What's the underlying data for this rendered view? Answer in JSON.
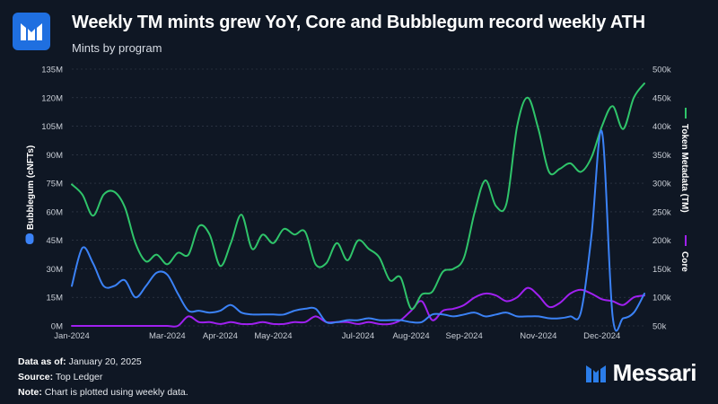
{
  "header": {
    "title": "Weekly TM mints grew YoY, Core and Bubblegum record weekly ATH",
    "subtitle": "Mints by program"
  },
  "footer": {
    "data_as_of_label": "Data as of:",
    "data_as_of_value": "January 20, 2025",
    "source_label": "Source:",
    "source_value": "Top Ledger",
    "note_label": "Note:",
    "note_value": "Chart is plotted using weekly data."
  },
  "brand": {
    "name": "Messari",
    "logo_icon": "messari-logo-icon"
  },
  "colors": {
    "background": "#0f1724",
    "bubblegum": "#3b82f6",
    "tm": "#2fc46a",
    "core": "#a020f0",
    "grid": "#3a4250",
    "axis_text": "#c9ced6"
  },
  "chart_data": {
    "type": "line",
    "x_tick_labels": [
      "Jan-2024",
      "Mar-2024",
      "Apr-2024",
      "May-2024",
      "Jul-2024",
      "Aug-2024",
      "Sep-2024",
      "Nov-2024",
      "Dec-2024"
    ],
    "x_tick_weeks": [
      0,
      9,
      14,
      19,
      27,
      32,
      37,
      44,
      50
    ],
    "weeks": 55,
    "left_axis": {
      "label": "Bubblegum (cNFTs)",
      "ticks": [
        "0M",
        "15M",
        "30M",
        "45M",
        "60M",
        "75M",
        "90M",
        "105M",
        "120M",
        "135M"
      ],
      "ylim": [
        0,
        135
      ]
    },
    "right_axis_primary": {
      "label": "Token Metadata (TM)",
      "ticks": [
        "50k",
        "100k",
        "150k",
        "200k",
        "250k",
        "300k",
        "350k",
        "400k",
        "450k",
        "500k"
      ],
      "ylim": [
        50,
        500
      ]
    },
    "right_axis_secondary_label": "Core",
    "series": [
      {
        "name": "Bubblegum",
        "axis": "left",
        "unit": "M",
        "values": [
          21,
          41,
          33,
          21,
          21,
          24,
          15,
          21,
          28,
          27,
          17,
          8,
          8,
          7,
          8,
          11,
          7,
          6,
          6,
          6,
          6,
          8,
          9,
          9,
          2,
          2,
          3,
          3,
          4,
          3,
          3,
          3,
          2,
          2,
          6,
          6,
          5,
          6,
          7,
          5,
          6,
          7,
          5,
          5,
          5,
          4,
          4,
          5,
          7,
          47,
          102,
          5,
          4,
          7,
          17
        ]
      },
      {
        "name": "Token Metadata (TM)",
        "axis": "right",
        "unit": "k",
        "values": [
          298,
          280,
          243,
          280,
          285,
          258,
          195,
          163,
          175,
          158,
          178,
          175,
          225,
          210,
          155,
          195,
          245,
          185,
          210,
          195,
          220,
          210,
          215,
          158,
          160,
          195,
          165,
          200,
          185,
          170,
          130,
          135,
          80,
          105,
          110,
          145,
          150,
          170,
          250,
          305,
          260,
          265,
          400,
          450,
          395,
          320,
          325,
          335,
          320,
          345,
          400,
          435,
          395,
          450,
          475
        ]
      },
      {
        "name": "Core",
        "axis": "left",
        "unit": "M",
        "values": [
          0,
          0,
          0,
          0,
          0,
          0,
          0,
          0,
          0,
          0,
          0,
          5,
          2,
          2,
          1,
          2,
          1,
          1,
          2,
          1,
          1,
          2,
          2,
          5,
          2,
          2,
          2,
          1,
          2,
          1,
          1,
          3,
          8,
          13,
          3,
          8,
          9,
          11,
          15,
          17,
          16,
          13,
          15,
          20,
          16,
          10,
          12,
          17,
          19,
          17,
          14,
          13,
          11,
          15,
          16
        ]
      }
    ]
  }
}
